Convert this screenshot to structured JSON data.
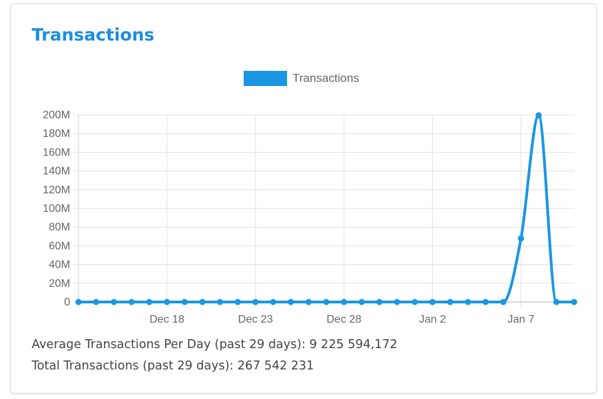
{
  "card": {
    "title": "Transactions"
  },
  "stats": {
    "average_line": "Average Transactions Per Day (past 29 days): 9 225 594,172",
    "total_line": "Total Transactions (past 29 days): 267 542 231"
  },
  "colors": {
    "accent": "#1a96e2",
    "title": "#1d8ee3",
    "grid": "#e1e1e1",
    "axis_text": "#666666"
  },
  "chart_data": {
    "type": "line",
    "title": "",
    "xlabel": "",
    "ylabel": "",
    "legend": {
      "position": "top-center",
      "entries": [
        "Transactions"
      ]
    },
    "grid": true,
    "ylim": [
      0,
      200000000
    ],
    "y_ticks": [
      0,
      20000000,
      40000000,
      60000000,
      80000000,
      100000000,
      120000000,
      140000000,
      160000000,
      180000000,
      200000000
    ],
    "y_tick_labels": [
      "0",
      "20M",
      "40M",
      "60M",
      "80M",
      "100M",
      "120M",
      "140M",
      "160M",
      "180M",
      "200M"
    ],
    "x_tick_labels": [
      "Dec 18",
      "Dec 23",
      "Dec 28",
      "Jan 2",
      "Jan 7"
    ],
    "x_tick_indices": [
      5,
      10,
      15,
      20,
      25
    ],
    "x": [
      "Dec 13",
      "Dec 14",
      "Dec 15",
      "Dec 16",
      "Dec 17",
      "Dec 18",
      "Dec 19",
      "Dec 20",
      "Dec 21",
      "Dec 22",
      "Dec 23",
      "Dec 24",
      "Dec 25",
      "Dec 26",
      "Dec 27",
      "Dec 28",
      "Dec 29",
      "Dec 30",
      "Dec 31",
      "Jan 1",
      "Jan 2",
      "Jan 3",
      "Jan 4",
      "Jan 5",
      "Jan 6",
      "Jan 7",
      "Jan 8",
      "Jan 9",
      "Jan 10"
    ],
    "series": [
      {
        "name": "Transactions",
        "color": "#1a96e2",
        "values": [
          0,
          0,
          0,
          0,
          0,
          0,
          0,
          0,
          0,
          0,
          0,
          0,
          0,
          0,
          0,
          0,
          0,
          0,
          0,
          0,
          0,
          0,
          0,
          0,
          0,
          68000000,
          199500000,
          0,
          0
        ]
      }
    ]
  }
}
